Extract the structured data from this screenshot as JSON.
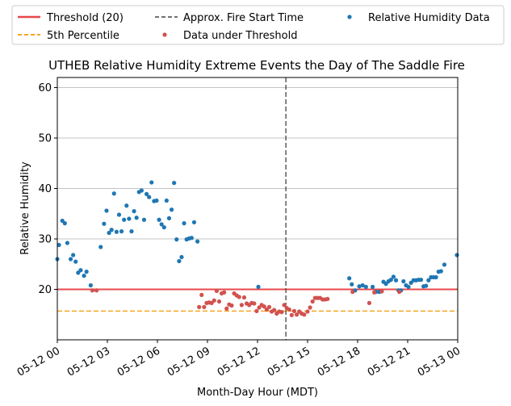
{
  "chart_data": {
    "type": "scatter",
    "title": "UTHEB Relative Humidity Extreme Events the Day of The Saddle Fire",
    "xlabel": "Month-Day Hour (MDT)",
    "ylabel": "Relative Humidity",
    "xlim": [
      0,
      24
    ],
    "ylim": [
      10.0,
      62.0
    ],
    "x_ticks": [
      {
        "x": 0,
        "label": "05-12 00"
      },
      {
        "x": 3,
        "label": "05-12 03"
      },
      {
        "x": 6,
        "label": "05-12 06"
      },
      {
        "x": 9,
        "label": "05-12 09"
      },
      {
        "x": 12,
        "label": "05-12 12"
      },
      {
        "x": 15,
        "label": "05-12 15"
      },
      {
        "x": 18,
        "label": "05-12 18"
      },
      {
        "x": 21,
        "label": "05-12 21"
      },
      {
        "x": 24,
        "label": "05-13 00"
      }
    ],
    "y_ticks": [
      20,
      30,
      40,
      50,
      60
    ],
    "grid": "horizontal",
    "legend_position": "top-center-outside",
    "threshold": {
      "name": "Threshold (20)",
      "value": 20,
      "color": "#e8474a"
    },
    "percentile": {
      "name": "5th Percentile",
      "value": 15.7,
      "color": "#f5a623"
    },
    "fire_start": {
      "name": "Approx. Fire Start Time",
      "x": 13.7,
      "color": "#444444"
    },
    "series": [
      {
        "name": "Relative Humidity Data",
        "color": "#1f77b4",
        "points": [
          [
            0.0,
            26.0
          ],
          [
            0.1,
            28.8
          ],
          [
            0.3,
            33.6
          ],
          [
            0.45,
            33.1
          ],
          [
            0.6,
            29.2
          ],
          [
            0.8,
            26.0
          ],
          [
            0.95,
            26.8
          ],
          [
            1.1,
            25.5
          ],
          [
            1.25,
            23.3
          ],
          [
            1.4,
            23.8
          ],
          [
            1.6,
            22.7
          ],
          [
            1.75,
            23.5
          ],
          [
            2.0,
            20.8
          ],
          [
            2.6,
            28.4
          ],
          [
            2.8,
            33.0
          ],
          [
            2.95,
            35.6
          ],
          [
            3.1,
            31.2
          ],
          [
            3.25,
            31.8
          ],
          [
            3.4,
            39.0
          ],
          [
            3.55,
            31.4
          ],
          [
            3.7,
            34.8
          ],
          [
            3.85,
            31.5
          ],
          [
            4.0,
            33.8
          ],
          [
            4.15,
            36.6
          ],
          [
            4.3,
            34.0
          ],
          [
            4.45,
            31.5
          ],
          [
            4.6,
            35.5
          ],
          [
            4.75,
            34.2
          ],
          [
            4.9,
            39.3
          ],
          [
            5.05,
            39.6
          ],
          [
            5.2,
            33.8
          ],
          [
            5.35,
            38.9
          ],
          [
            5.5,
            38.3
          ],
          [
            5.65,
            41.2
          ],
          [
            5.8,
            37.5
          ],
          [
            5.95,
            37.6
          ],
          [
            6.1,
            33.8
          ],
          [
            6.25,
            32.9
          ],
          [
            6.4,
            32.3
          ],
          [
            6.55,
            37.6
          ],
          [
            6.7,
            34.1
          ],
          [
            6.85,
            35.8
          ],
          [
            7.0,
            41.1
          ],
          [
            7.15,
            29.9
          ],
          [
            7.3,
            25.6
          ],
          [
            7.45,
            26.4
          ],
          [
            7.6,
            33.1
          ],
          [
            7.75,
            29.9
          ],
          [
            7.9,
            30.1
          ],
          [
            8.05,
            30.2
          ],
          [
            8.2,
            33.3
          ],
          [
            8.4,
            29.5
          ],
          [
            12.05,
            20.5
          ],
          [
            17.5,
            22.2
          ],
          [
            17.65,
            21.0
          ],
          [
            17.85,
            19.8
          ],
          [
            18.1,
            20.6
          ],
          [
            18.3,
            20.8
          ],
          [
            18.5,
            20.5
          ],
          [
            18.9,
            20.5
          ],
          [
            19.1,
            19.5
          ],
          [
            19.3,
            19.5
          ],
          [
            19.55,
            21.5
          ],
          [
            19.7,
            21.1
          ],
          [
            19.85,
            21.6
          ],
          [
            20.0,
            21.9
          ],
          [
            20.15,
            22.5
          ],
          [
            20.3,
            21.8
          ],
          [
            20.45,
            19.8
          ],
          [
            20.6,
            19.8
          ],
          [
            20.75,
            21.6
          ],
          [
            20.9,
            20.8
          ],
          [
            21.05,
            20.5
          ],
          [
            21.2,
            21.3
          ],
          [
            21.35,
            21.8
          ],
          [
            21.5,
            21.8
          ],
          [
            21.65,
            21.9
          ],
          [
            21.8,
            21.9
          ],
          [
            21.95,
            20.6
          ],
          [
            22.1,
            20.7
          ],
          [
            22.25,
            21.8
          ],
          [
            22.4,
            22.4
          ],
          [
            22.55,
            22.4
          ],
          [
            22.7,
            22.4
          ],
          [
            22.85,
            23.5
          ],
          [
            23.0,
            23.6
          ],
          [
            23.2,
            24.9
          ],
          [
            23.95,
            26.8
          ]
        ]
      },
      {
        "name": "Data under Threshold",
        "color": "#d1524e",
        "points": [
          [
            2.1,
            19.8
          ],
          [
            2.35,
            19.8
          ],
          [
            8.5,
            16.5
          ],
          [
            8.65,
            18.9
          ],
          [
            8.8,
            16.5
          ],
          [
            8.95,
            17.3
          ],
          [
            9.1,
            17.4
          ],
          [
            9.25,
            17.3
          ],
          [
            9.4,
            17.8
          ],
          [
            9.55,
            19.7
          ],
          [
            9.7,
            17.6
          ],
          [
            9.85,
            19.2
          ],
          [
            10.0,
            19.4
          ],
          [
            10.15,
            16.2
          ],
          [
            10.3,
            17.0
          ],
          [
            10.45,
            16.8
          ],
          [
            10.6,
            19.2
          ],
          [
            10.75,
            18.8
          ],
          [
            10.9,
            18.5
          ],
          [
            11.05,
            16.9
          ],
          [
            11.2,
            18.4
          ],
          [
            11.35,
            17.2
          ],
          [
            11.5,
            16.9
          ],
          [
            11.65,
            17.3
          ],
          [
            11.8,
            17.2
          ],
          [
            11.95,
            15.7
          ],
          [
            12.1,
            16.4
          ],
          [
            12.25,
            16.9
          ],
          [
            12.4,
            16.6
          ],
          [
            12.55,
            16.0
          ],
          [
            12.7,
            16.5
          ],
          [
            12.85,
            15.6
          ],
          [
            13.0,
            15.9
          ],
          [
            13.15,
            15.2
          ],
          [
            13.3,
            15.6
          ],
          [
            13.45,
            15.5
          ],
          [
            13.6,
            16.9
          ],
          [
            13.75,
            16.3
          ],
          [
            13.9,
            16.0
          ],
          [
            14.05,
            14.9
          ],
          [
            14.2,
            15.7
          ],
          [
            14.35,
            15.0
          ],
          [
            14.5,
            15.6
          ],
          [
            14.65,
            15.2
          ],
          [
            14.8,
            15.0
          ],
          [
            15.0,
            15.6
          ],
          [
            15.15,
            16.4
          ],
          [
            15.3,
            17.6
          ],
          [
            15.45,
            18.3
          ],
          [
            15.6,
            18.3
          ],
          [
            15.75,
            18.3
          ],
          [
            15.9,
            18.0
          ],
          [
            16.05,
            18.0
          ],
          [
            16.2,
            18.1
          ],
          [
            17.7,
            19.5
          ],
          [
            18.7,
            17.3
          ],
          [
            19.0,
            19.4
          ],
          [
            19.45,
            19.6
          ],
          [
            20.5,
            19.5
          ]
        ]
      }
    ]
  }
}
